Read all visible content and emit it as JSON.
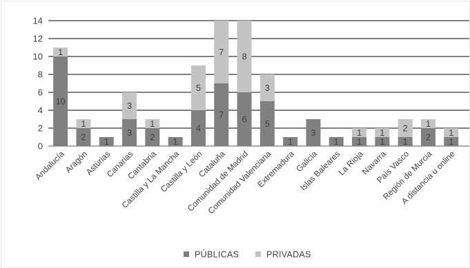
{
  "chart_data": {
    "type": "bar",
    "stacked": true,
    "title": "",
    "xlabel": "",
    "ylabel": "",
    "ylim": [
      0,
      14
    ],
    "yticks": [
      0,
      2,
      4,
      6,
      8,
      10,
      12,
      14
    ],
    "grid": "horizontal",
    "legend_position": "bottom",
    "categories": [
      "Andalucía",
      "Aragón",
      "Asturias",
      "Canarias",
      "Cantabria",
      "Castilla y La Mancha",
      "Castilla y León",
      "Cataluña",
      "Comunidad de Madrid",
      "Comunidad Valenciana",
      "Extremadura",
      "Galicia",
      "Islas Baleares",
      "La Rioja",
      "Navarra",
      "País Vasco",
      "Región de Murcia",
      "A distancia u online"
    ],
    "series": [
      {
        "name": "PÚBLICAS",
        "color": "#808080",
        "values": [
          10,
          2,
          1,
          3,
          2,
          1,
          4,
          7,
          6,
          5,
          1,
          3,
          1,
          1,
          1,
          1,
          2,
          1
        ]
      },
      {
        "name": "PRIVADAS",
        "color": "#c4c4c4",
        "values": [
          1,
          1,
          0,
          3,
          1,
          0,
          5,
          7,
          8,
          3,
          0,
          0,
          0,
          1,
          1,
          2,
          1,
          1
        ]
      }
    ]
  }
}
